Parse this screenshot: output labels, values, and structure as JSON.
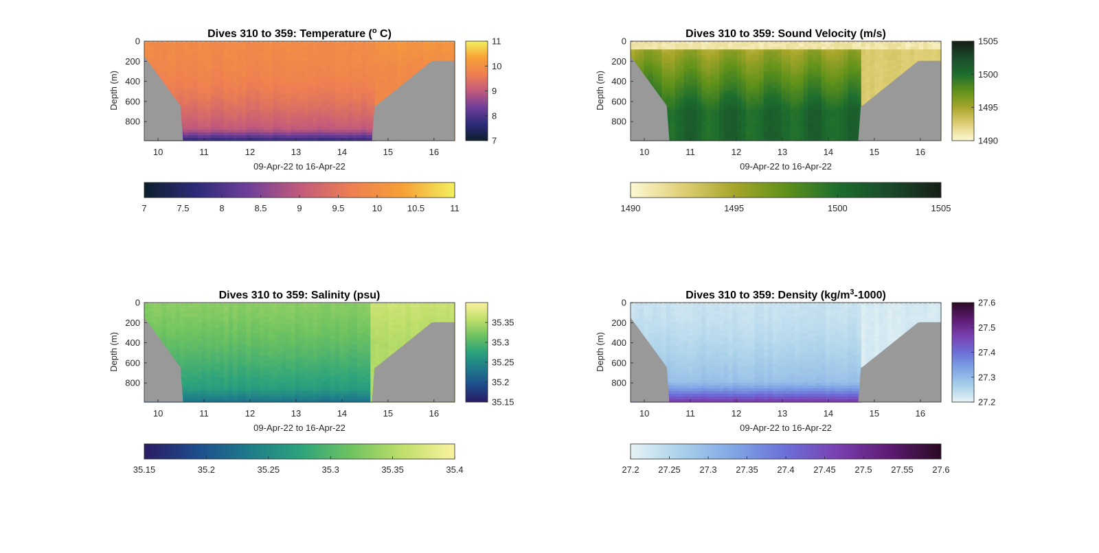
{
  "chart_data": [
    {
      "type": "heatmap",
      "title": "Dives 310 to 359: Temperature (",
      "title_sup": "o",
      "title_end": " C)",
      "ylabel": "Depth (m)",
      "xlabel": "09-Apr-22 to 16-Apr-22",
      "xlim": [
        9.7,
        16.45
      ],
      "ylim": [
        990,
        0
      ],
      "x_ticks": [
        "10",
        "11",
        "12",
        "13",
        "14",
        "15",
        "16"
      ],
      "y_ticks": [
        "0",
        "200",
        "400",
        "600",
        "800"
      ],
      "colorbar": {
        "min": 7,
        "max": 11,
        "side_ticks": [
          "7",
          "8",
          "9",
          "10",
          "11"
        ],
        "bottom_ticks": [
          "7",
          "7.5",
          "8",
          "8.5",
          "9",
          "9.5",
          "10",
          "10.5",
          "11"
        ],
        "colors": [
          "#0d1f2d",
          "#2c2a7a",
          "#6e3f9a",
          "#c25a7c",
          "#ee7f52",
          "#f7a036",
          "#f2f05e"
        ]
      },
      "bathymetry": "#999999"
    },
    {
      "type": "heatmap",
      "title": "Dives 310 to 359: Sound Velocity (m/s)",
      "title_sup": "",
      "title_end": "",
      "ylabel": "Depth (m)",
      "xlabel": "09-Apr-22 to 16-Apr-22",
      "xlim": [
        9.7,
        16.45
      ],
      "ylim": [
        990,
        0
      ],
      "x_ticks": [
        "10",
        "11",
        "12",
        "13",
        "14",
        "15",
        "16"
      ],
      "y_ticks": [
        "0",
        "200",
        "400",
        "600",
        "800"
      ],
      "colorbar": {
        "min": 1490,
        "max": 1505,
        "side_ticks": [
          "1490",
          "1495",
          "1500",
          "1505"
        ],
        "bottom_ticks": [
          "1490",
          "1495",
          "1500",
          "1505"
        ],
        "colors": [
          "#fdf8d4",
          "#e0cf77",
          "#a7a62a",
          "#5f911a",
          "#1d6d2e",
          "#1a4a2a",
          "#151e16"
        ]
      },
      "bathymetry": "#999999"
    },
    {
      "type": "heatmap",
      "title": "Dives 310 to 359: Salinity (psu)",
      "title_sup": "",
      "title_end": "",
      "ylabel": "Depth (m)",
      "xlabel": "09-Apr-22 to 16-Apr-22",
      "xlim": [
        9.7,
        16.45
      ],
      "ylim": [
        990,
        0
      ],
      "x_ticks": [
        "10",
        "11",
        "12",
        "13",
        "14",
        "15",
        "16"
      ],
      "y_ticks": [
        "0",
        "200",
        "400",
        "600",
        "800"
      ],
      "colorbar": {
        "min": 35.15,
        "max": 35.4,
        "side_ticks": [
          "35.15",
          "35.2",
          "35.25",
          "35.3",
          "35.35"
        ],
        "bottom_ticks": [
          "35.15",
          "35.2",
          "35.25",
          "35.3",
          "35.35",
          "35.4"
        ],
        "colors": [
          "#2a1b63",
          "#1d4c8c",
          "#1e7a8a",
          "#2ba27c",
          "#6fc360",
          "#c0df6a",
          "#fbf2a0"
        ]
      },
      "bathymetry": "#999999"
    },
    {
      "type": "heatmap",
      "title": "Dives 310 to 359: Density (kg/m",
      "title_sup": "3",
      "title_end": "-1000)",
      "ylabel": "Depth (m)",
      "xlabel": "09-Apr-22 to 16-Apr-22",
      "xlim": [
        9.7,
        16.45
      ],
      "ylim": [
        990,
        0
      ],
      "x_ticks": [
        "10",
        "11",
        "12",
        "13",
        "14",
        "15",
        "16"
      ],
      "y_ticks": [
        "0",
        "200",
        "400",
        "600",
        "800"
      ],
      "colorbar": {
        "min": 27.2,
        "max": 27.6,
        "side_ticks": [
          "27.2",
          "27.3",
          "27.4",
          "27.5",
          "27.6"
        ],
        "bottom_ticks": [
          "27.2",
          "27.25",
          "27.3",
          "27.35",
          "27.4",
          "27.45",
          "27.5",
          "27.55",
          "27.6"
        ],
        "colors": [
          "#e6f3f5",
          "#a8d0ea",
          "#7fa6e4",
          "#6b6fd8",
          "#7a3fb0",
          "#5d1a72",
          "#2a0a22"
        ]
      },
      "bathymetry": "#999999"
    }
  ]
}
